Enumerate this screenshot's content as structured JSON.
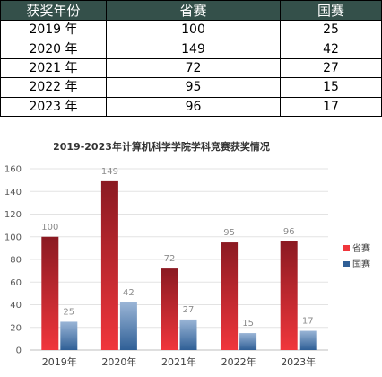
{
  "table": {
    "headers": [
      "获奖年份",
      "省赛",
      "国赛"
    ],
    "rows": [
      [
        "2019 年",
        "100",
        "25"
      ],
      [
        "2020 年",
        "149",
        "42"
      ],
      [
        "2021 年",
        "72",
        "27"
      ],
      [
        "2022 年",
        "95",
        "15"
      ],
      [
        "2023 年",
        "96",
        "17"
      ]
    ]
  },
  "colors": {
    "header_bg": "#34504a",
    "provincial_top": "#8b1a22",
    "provincial_bottom": "#f0363c",
    "national_top": "#9ab5d6",
    "national_bottom": "#2f5f96"
  },
  "chart_data": {
    "type": "bar",
    "title": "2019-2023年计算机科学学院学科竞赛获奖情况",
    "categories": [
      "2019年",
      "2020年",
      "2021年",
      "2022年",
      "2023年"
    ],
    "series": [
      {
        "name": "省赛",
        "values": [
          100,
          149,
          72,
          95,
          96
        ]
      },
      {
        "name": "国赛",
        "values": [
          25,
          42,
          27,
          15,
          17
        ]
      }
    ],
    "ylim": [
      0,
      160
    ],
    "yticks": [
      0,
      20,
      40,
      60,
      80,
      100,
      120,
      140,
      160
    ],
    "grid": true,
    "legend": "right",
    "data_labels": true
  }
}
